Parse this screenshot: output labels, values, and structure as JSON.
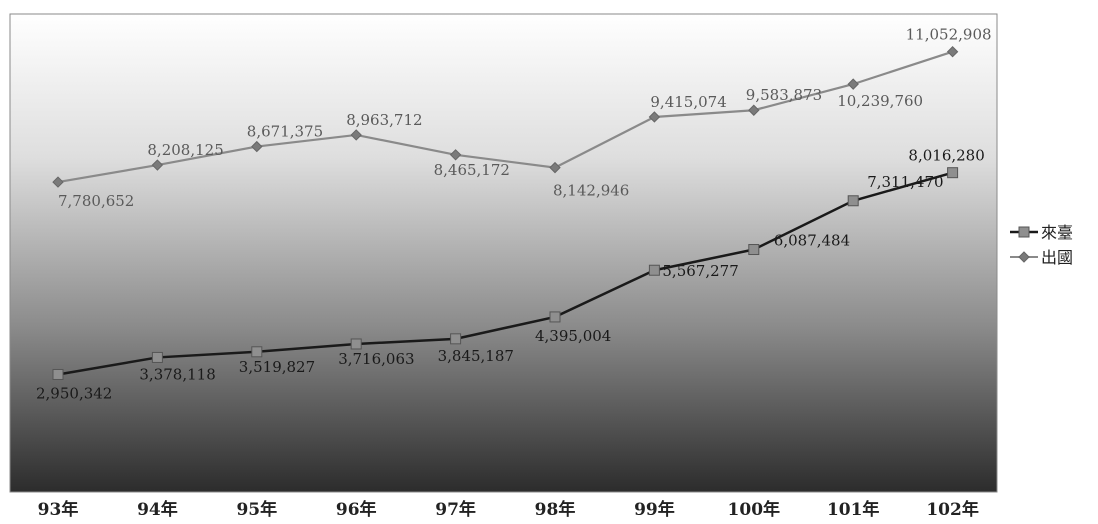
{
  "chart_data": {
    "type": "line",
    "categories": [
      "93年",
      "94年",
      "95年",
      "96年",
      "97年",
      "98年",
      "99年",
      "100年",
      "101年",
      "102年"
    ],
    "series": [
      {
        "name": "來臺",
        "color": "#1a1a1a",
        "marker": "square",
        "values": [
          2950342,
          3378118,
          3519827,
          3716063,
          3845187,
          4395004,
          5567277,
          6087484,
          7311470,
          8016280
        ],
        "labels": [
          "2,950,342",
          "3,378,118",
          "3,519,827",
          "3,716,063",
          "3,845,187",
          "4,395,004",
          "5,567,277",
          "6,087,484",
          "7,311,470",
          "8,016,280"
        ]
      },
      {
        "name": "出國",
        "color": "#8a8a8a",
        "marker": "diamond",
        "values": [
          7780652,
          8208125,
          8671375,
          8963712,
          8465172,
          8142946,
          9415074,
          9583873,
          10239760,
          11052908
        ],
        "labels": [
          "7,780,652",
          "8,208,125",
          "8,671,375",
          "8,963,712",
          "8,465,172",
          "8,142,946",
          "9,415,074",
          "9,583,873",
          "10,239,760",
          "11,052,908"
        ]
      }
    ],
    "ylim": [
      0,
      12000000
    ],
    "grid": false,
    "legend": "right",
    "background": "gradient-white-to-dark"
  }
}
